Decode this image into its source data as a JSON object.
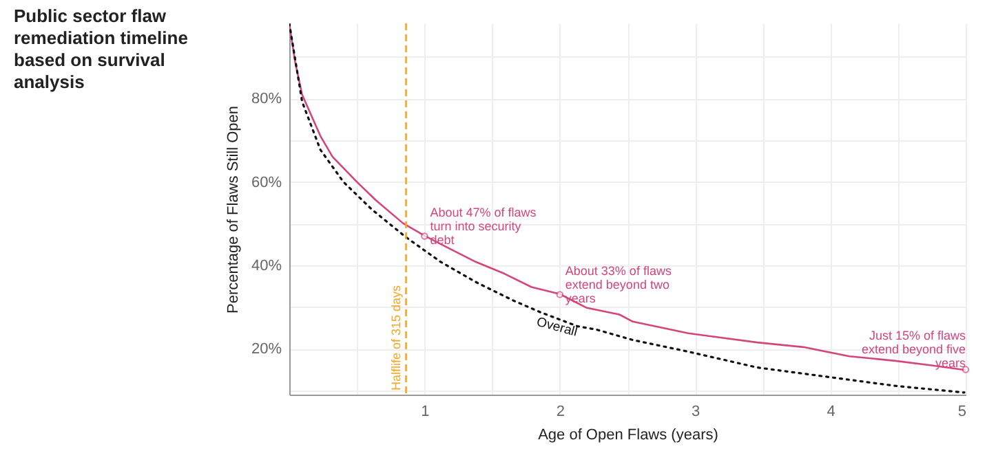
{
  "chart_data": {
    "type": "line",
    "title": "Public sector flaw remediation timeline based on survival analysis",
    "xlabel": "Age of Open Flaws (years)",
    "ylabel": "Percentage of Flaws Still Open",
    "xlim": [
      0,
      5
    ],
    "ylim": [
      9,
      98
    ],
    "xticks": [
      {
        "value": 0.5,
        "label": null
      },
      1,
      {
        "value": 1.5,
        "label": null
      },
      2,
      {
        "value": 2.5,
        "label": null
      },
      3,
      {
        "value": 3.5,
        "label": null
      },
      4,
      {
        "value": 4.5,
        "label": null
      },
      5
    ],
    "yticks": [
      {
        "value": 10,
        "label": null
      },
      {
        "value": 20,
        "label": "20%"
      },
      {
        "value": 30,
        "label": null
      },
      {
        "value": 40,
        "label": "40%"
      },
      {
        "value": 50,
        "label": null
      },
      {
        "value": 60,
        "label": "60%"
      },
      {
        "value": 70,
        "label": null
      },
      {
        "value": 80,
        "label": "80%"
      },
      {
        "value": 90,
        "label": null
      }
    ],
    "grid": true,
    "series": [
      {
        "color": "#d4457c",
        "line_style": "solid",
        "x": [
          0,
          0.044,
          0.095,
          0.23,
          0.32,
          0.5,
          0.64,
          0.84,
          1.0,
          1.18,
          1.38,
          1.59,
          1.79,
          2.0,
          2.2,
          2.44,
          2.54,
          2.95,
          3.46,
          3.8,
          4.14,
          4.48,
          4.75,
          5.0
        ],
        "values": [
          97.9,
          88.6,
          80.9,
          71,
          66,
          60,
          55.6,
          50.1,
          47.1,
          44.1,
          40.8,
          38,
          34.8,
          33.1,
          29.8,
          28.2,
          26.5,
          23.7,
          21.5,
          20.4,
          18.2,
          17.1,
          16,
          14.9
        ]
      },
      {
        "name": "Overall",
        "color": "#111111",
        "line_style": "dotted",
        "x": [
          0,
          0.095,
          0.23,
          0.4,
          0.61,
          0.86,
          1.12,
          1.39,
          1.66,
          1.86,
          2.13,
          2.27,
          2.54,
          2.95,
          3.46,
          3.97,
          4.48,
          4.99
        ],
        "values": [
          98,
          79.2,
          67.7,
          60,
          53.4,
          46.8,
          40.8,
          35.8,
          31.5,
          28.7,
          25.4,
          24.6,
          22.1,
          19.3,
          15.5,
          13.3,
          11.1,
          9.5
        ]
      }
    ],
    "ref_lines": [
      {
        "axis": "x",
        "value": 0.863,
        "label": "Halflife of 315 days",
        "color": "#f5a623",
        "line_style": "dashed"
      }
    ],
    "annotations": [
      {
        "text": "About 47% of flaws turn into security debt",
        "x": 1,
        "y": 47
      },
      {
        "text": "About 33% of flaws extend beyond two years",
        "x": 2,
        "y": 33
      },
      {
        "text": "Just 15% of flaws extend beyond five years",
        "x": 5,
        "y": 15
      }
    ]
  }
}
